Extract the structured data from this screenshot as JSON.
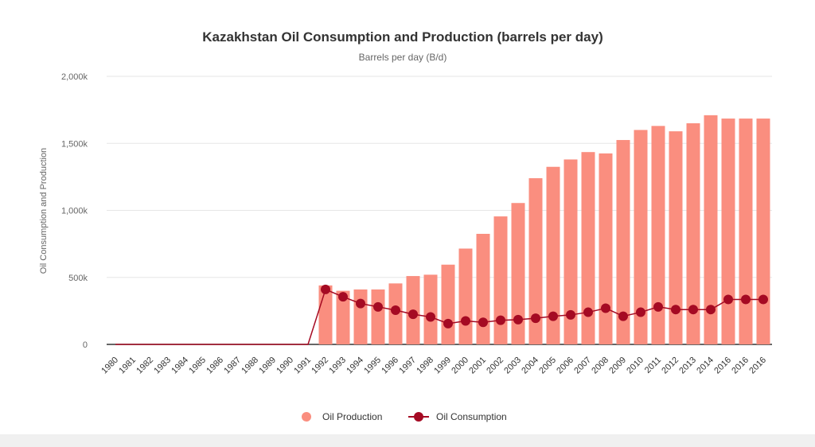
{
  "colors": {
    "production": "#fa8e7f",
    "consumption": "#a50a23",
    "grid": "#e6e6e6",
    "axis": "#333333"
  },
  "chart_data": {
    "type": "bar",
    "title": "Kazakhstan Oil Consumption and Production (barrels per day)",
    "subtitle": "Barrels per day (B/d)",
    "xlabel": "",
    "ylabel": "Oil Consumption and Production",
    "ylim": [
      0,
      2000000
    ],
    "yticks": [
      {
        "value": 0,
        "label": "0"
      },
      {
        "value": 500000,
        "label": "500k"
      },
      {
        "value": 1000000,
        "label": "1,000k"
      },
      {
        "value": 1500000,
        "label": "1,500k"
      },
      {
        "value": 2000000,
        "label": "2,000k"
      }
    ],
    "grid": true,
    "legend_position": "bottom",
    "categories": [
      "1980",
      "1981",
      "1982",
      "1983",
      "1984",
      "1985",
      "1986",
      "1987",
      "1988",
      "1989",
      "1990",
      "1991",
      "1992",
      "1993",
      "1994",
      "1995",
      "1996",
      "1997",
      "1998",
      "1999",
      "2000",
      "2001",
      "2002",
      "2003",
      "2004",
      "2005",
      "2006",
      "2007",
      "2008",
      "2009",
      "2010",
      "2011",
      "2012",
      "2013",
      "2014",
      "2016",
      "2016",
      "2016"
    ],
    "series": [
      {
        "name": "Oil Production",
        "type": "bar",
        "values": [
          0,
          0,
          0,
          0,
          0,
          0,
          0,
          0,
          0,
          0,
          0,
          0,
          440000,
          400000,
          410000,
          410000,
          455000,
          510000,
          520000,
          595000,
          715000,
          825000,
          955000,
          1055000,
          1240000,
          1325000,
          1380000,
          1435000,
          1425000,
          1525000,
          1600000,
          1630000,
          1590000,
          1650000,
          1710000,
          1685000,
          1685000,
          1685000
        ]
      },
      {
        "name": "Oil Consumption",
        "type": "line",
        "values": [
          0,
          0,
          0,
          0,
          0,
          0,
          0,
          0,
          0,
          0,
          0,
          0,
          410000,
          355000,
          305000,
          280000,
          255000,
          225000,
          205000,
          155000,
          175000,
          165000,
          180000,
          185000,
          195000,
          210000,
          220000,
          240000,
          270000,
          210000,
          240000,
          280000,
          260000,
          260000,
          260000,
          335000,
          335000,
          335000
        ]
      }
    ]
  }
}
